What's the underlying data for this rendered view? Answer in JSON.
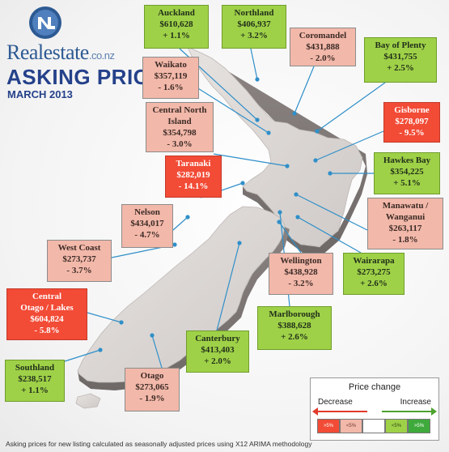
{
  "brand": {
    "name": "Realestate",
    "domain": ".co.nz"
  },
  "title": "ASKING PRICES",
  "subtitle": "MARCH 2013",
  "regions": [
    {
      "id": "auckland",
      "name": "Auckland",
      "price": "$610,628",
      "change": "+ 1.1%",
      "category": "increase-lt5"
    },
    {
      "id": "northland",
      "name": "Northland",
      "price": "$406,937",
      "change": "+ 3.2%",
      "category": "increase-lt5"
    },
    {
      "id": "coromandel",
      "name": "Coromandel",
      "price": "$431,888",
      "change": "- 2.0%",
      "category": "decrease-lt5"
    },
    {
      "id": "bay-of-plenty",
      "name": "Bay of Plenty",
      "price": "$431,755",
      "change": "+ 2.5%",
      "category": "increase-lt5"
    },
    {
      "id": "waikato",
      "name": "Waikato",
      "price": "$357,119",
      "change": "- 1.6%",
      "category": "decrease-lt5"
    },
    {
      "id": "central-north-island",
      "name_lines": [
        "Central North",
        "Island"
      ],
      "price": "$354,798",
      "change": "- 3.0%",
      "category": "decrease-lt5"
    },
    {
      "id": "gisborne",
      "name": "Gisborne",
      "price": "$278,097",
      "change": "- 9.5%",
      "category": "decrease-gt5"
    },
    {
      "id": "taranaki",
      "name": "Taranaki",
      "price": "$282,019",
      "change": "- 14.1%",
      "category": "decrease-gt5"
    },
    {
      "id": "hawkes-bay",
      "name": "Hawkes Bay",
      "price": "$354,225",
      "change": "+ 5.1%",
      "category": "increase-gt5"
    },
    {
      "id": "nelson",
      "name": "Nelson",
      "price": "$434,017",
      "change": "- 4.7%",
      "category": "decrease-lt5"
    },
    {
      "id": "manawatu-wanganui",
      "name_lines": [
        "Manawatu  /",
        "Wanganui"
      ],
      "price": "$263,117",
      "change": "- 1.8%",
      "category": "decrease-lt5"
    },
    {
      "id": "west-coast",
      "name": "West Coast",
      "price": "$273,737",
      "change": "- 3.7%",
      "category": "decrease-lt5"
    },
    {
      "id": "wellington",
      "name": "Wellington",
      "price": "$438,928",
      "change": "- 3.2%",
      "category": "decrease-lt5"
    },
    {
      "id": "wairarapa",
      "name": "Wairarapa",
      "price": "$273,275",
      "change": "+ 2.6%",
      "category": "increase-lt5"
    },
    {
      "id": "central-otago-lakes",
      "name_lines": [
        "Central",
        "Otago / Lakes"
      ],
      "price": "$604,824",
      "change": "- 5.8%",
      "category": "decrease-gt5"
    },
    {
      "id": "marlborough",
      "name": "Marlborough",
      "price": "$388,628",
      "change": "+ 2.6%",
      "category": "increase-lt5"
    },
    {
      "id": "canterbury",
      "name": "Canterbury",
      "price": "$413,403",
      "change": "+ 2.0%",
      "category": "increase-lt5"
    },
    {
      "id": "southland",
      "name": "Southland",
      "price": "$238,517",
      "change": "+ 1.1%",
      "category": "increase-lt5"
    },
    {
      "id": "otago",
      "name": "Otago",
      "price": "$273,065",
      "change": "- 1.9%",
      "category": "decrease-lt5"
    }
  ],
  "legend": {
    "title": "Price change",
    "decrease_label": "Decrease",
    "increase_label": "Increase",
    "swatches": [
      {
        "label": ">5%",
        "color": "#f24b36"
      },
      {
        "label": "<5%",
        "color": "#f2b8a9"
      },
      {
        "label": "",
        "color": "#ffffff"
      },
      {
        "label": "<5%",
        "color": "#9fd148"
      },
      {
        "label": ">5%",
        "color": "#3faa3c"
      }
    ]
  },
  "colors": {
    "decrease_gt5": "#f24b36",
    "decrease_lt5": "#f2b8a9",
    "increase_lt5": "#9fd148",
    "increase_gt5": "#3faa3c",
    "title_blue": "#24418a",
    "leader_line": "#2f8fc9"
  },
  "footnote": "Asking prices for new listing calculated as seasonally adjusted prices using X12 ARIMA methodology"
}
